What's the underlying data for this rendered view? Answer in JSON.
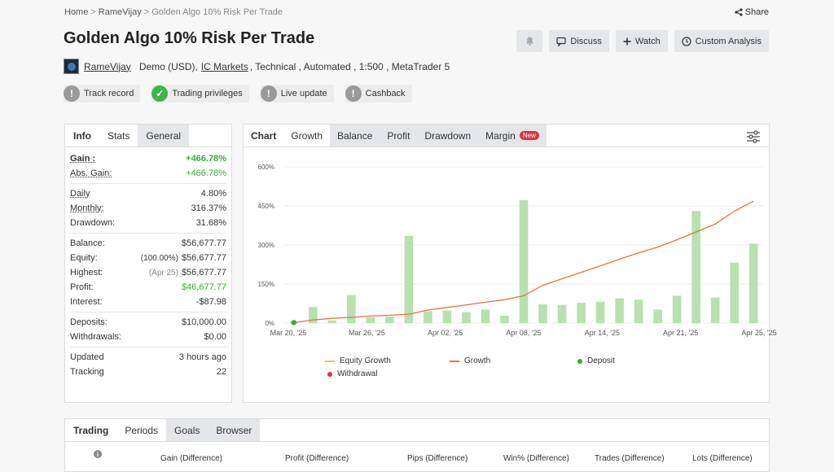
{
  "breadcrumb": {
    "home": "Home",
    "sep": ">",
    "user": "RameVijay",
    "current": "Golden Algo 10% Risk Per Trade"
  },
  "share_label": "Share",
  "title": "Golden Algo 10% Risk Per Trade",
  "actions": {
    "discuss": "Discuss",
    "watch": "Watch",
    "custom": "Custom Analysis"
  },
  "meta": {
    "username": "RameVijay",
    "account": "Demo (USD),",
    "broker": "IC Markets",
    "details": ", Technical , Automated , 1:500 , MetaTrader 5"
  },
  "badges": [
    {
      "label": "Track record",
      "ok": false
    },
    {
      "label": "Trading privileges",
      "ok": true
    },
    {
      "label": "Live update",
      "ok": false
    },
    {
      "label": "Cashback",
      "ok": false
    }
  ],
  "info_tabs": [
    "Info",
    "Stats",
    "General"
  ],
  "info": {
    "gain_k": "Gain :",
    "gain_v": "+466.78%",
    "abs_k": "Abs. Gain:",
    "abs_v": "+466.78%",
    "daily_k": "Daily",
    "daily_v": "4.80%",
    "monthly_k": "Monthly:",
    "monthly_v": "316.37%",
    "drawdown_k": "Drawdown:",
    "drawdown_v": "31.68%",
    "balance_k": "Balance:",
    "balance_v": "$56,677.77",
    "equity_k": "Equity:",
    "equity_note": "(100.00%)",
    "equity_v": "$56,677.77",
    "highest_k": "Highest:",
    "highest_note": "(Apr 25)",
    "highest_v": "$56,677.77",
    "profit_k": "Profit:",
    "profit_v": "$46,677.77",
    "interest_k": "Interest:",
    "interest_v": "-$87.98",
    "deposits_k": "Deposits:",
    "deposits_v": "$10,000.00",
    "withdrawals_k": "Withdrawals:",
    "withdrawals_v": "$0.00",
    "updated_k": "Updated",
    "updated_v": "3 hours ago",
    "tracking_k": "Tracking",
    "tracking_v": "22"
  },
  "chart_tabs": {
    "chart": "Chart",
    "growth": "Growth",
    "balance": "Balance",
    "profit": "Profit",
    "drawdown": "Drawdown",
    "margin": "Margin",
    "new_tag": "New"
  },
  "chart_data": {
    "type": "bar",
    "ylim": [
      0,
      600
    ],
    "yticks": [
      "600%",
      "450%",
      "300%",
      "150%",
      "0%"
    ],
    "xticks": [
      "Mar 20, '25",
      "Mar 26, '25",
      "Apr 02, '25",
      "Apr 08, '25",
      "Apr 14, '25",
      "Apr 21, '25",
      "Apr 25, '25"
    ],
    "bars": [
      5,
      62,
      10,
      108,
      22,
      25,
      335,
      45,
      48,
      42,
      52,
      28,
      472,
      72,
      70,
      78,
      82,
      95,
      90,
      52,
      105,
      430,
      98,
      232,
      305
    ],
    "growth_line": [
      2,
      12,
      18,
      22,
      27,
      30,
      34,
      50,
      60,
      70,
      80,
      90,
      105,
      145,
      170,
      195,
      220,
      245,
      270,
      292,
      320,
      350,
      380,
      430,
      468
    ],
    "legend": {
      "equity": "Equity Growth",
      "growth": "Growth",
      "deposit": "Deposit",
      "withdrawal": "Withdrawal"
    },
    "colors": {
      "bar": "#b8e0b0",
      "line": "#e8743b",
      "equity": "#f3c44f",
      "deposit": "#3aaa35",
      "withdrawal": "#d9363e"
    }
  },
  "bottom_tabs": [
    "Trading",
    "Periods",
    "Goals",
    "Browser"
  ],
  "bottom_cols": [
    "Gain (Difference)",
    "Profit (Difference)",
    "Pips (Difference)",
    "Win% (Difference)",
    "Trades (Difference)",
    "Lots (Difference)"
  ]
}
